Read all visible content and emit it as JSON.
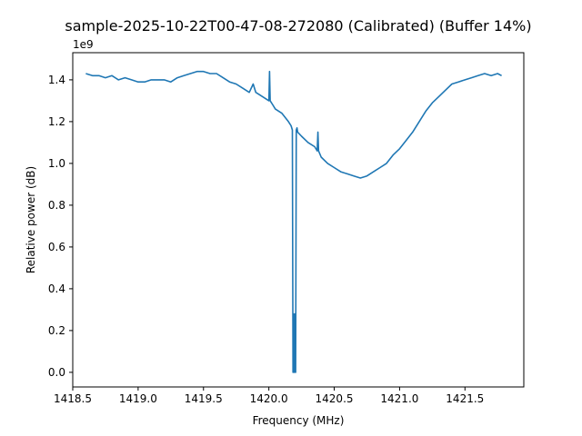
{
  "chart_data": {
    "type": "line",
    "title": "sample-2025-10-22T00-47-08-272080 (Calibrated) (Buffer 14%)",
    "xlabel": "Frequency (MHz)",
    "ylabel": "Relative power (dB)",
    "y_offset_label": "1e9",
    "xlim": [
      1418.5,
      1421.95
    ],
    "ylim": [
      -0.07,
      1.53
    ],
    "xticks": [
      1418.5,
      1419.0,
      1419.5,
      1420.0,
      1420.5,
      1421.0,
      1421.5
    ],
    "xtick_labels": [
      "1418.5",
      "1419.0",
      "1419.5",
      "1420.0",
      "1420.5",
      "1421.0",
      "1421.5"
    ],
    "yticks": [
      0.0,
      0.2,
      0.4,
      0.6,
      0.8,
      1.0,
      1.2,
      1.4
    ],
    "ytick_labels": [
      "0.0",
      "0.2",
      "0.4",
      "0.6",
      "0.8",
      "1.0",
      "1.2",
      "1.4"
    ],
    "grid": false,
    "series": [
      {
        "color": "#1f77b4",
        "x": [
          1418.6,
          1418.65,
          1418.7,
          1418.75,
          1418.8,
          1418.85,
          1418.9,
          1418.95,
          1419.0,
          1419.05,
          1419.1,
          1419.15,
          1419.2,
          1419.25,
          1419.3,
          1419.35,
          1419.4,
          1419.45,
          1419.5,
          1419.55,
          1419.6,
          1419.65,
          1419.7,
          1419.75,
          1419.8,
          1419.85,
          1419.88,
          1419.9,
          1419.95,
          1420.0,
          1420.005,
          1420.01,
          1420.03,
          1420.05,
          1420.1,
          1420.15,
          1420.17,
          1420.18,
          1420.185,
          1420.19,
          1420.195,
          1420.2,
          1420.205,
          1420.21,
          1420.215,
          1420.22,
          1420.25,
          1420.3,
          1420.35,
          1420.37,
          1420.375,
          1420.38,
          1420.4,
          1420.45,
          1420.5,
          1420.55,
          1420.6,
          1420.65,
          1420.7,
          1420.75,
          1420.8,
          1420.85,
          1420.9,
          1420.95,
          1421.0,
          1421.05,
          1421.1,
          1421.15,
          1421.2,
          1421.25,
          1421.3,
          1421.35,
          1421.4,
          1421.45,
          1421.5,
          1421.55,
          1421.6,
          1421.65,
          1421.7,
          1421.75,
          1421.78
        ],
        "y": [
          1.43,
          1.42,
          1.42,
          1.41,
          1.42,
          1.4,
          1.41,
          1.4,
          1.39,
          1.39,
          1.4,
          1.4,
          1.4,
          1.39,
          1.41,
          1.42,
          1.43,
          1.44,
          1.44,
          1.43,
          1.43,
          1.41,
          1.39,
          1.38,
          1.36,
          1.34,
          1.38,
          1.34,
          1.32,
          1.3,
          1.44,
          1.3,
          1.28,
          1.26,
          1.24,
          1.2,
          1.18,
          1.16,
          0.0,
          0.28,
          0.0,
          0.28,
          0.0,
          1.16,
          1.17,
          1.15,
          1.13,
          1.1,
          1.08,
          1.06,
          1.15,
          1.06,
          1.03,
          1.0,
          0.98,
          0.96,
          0.95,
          0.94,
          0.93,
          0.94,
          0.96,
          0.98,
          1.0,
          1.04,
          1.07,
          1.11,
          1.15,
          1.2,
          1.25,
          1.29,
          1.32,
          1.35,
          1.38,
          1.39,
          1.4,
          1.41,
          1.42,
          1.43,
          1.42,
          1.43,
          1.42
        ]
      }
    ]
  }
}
